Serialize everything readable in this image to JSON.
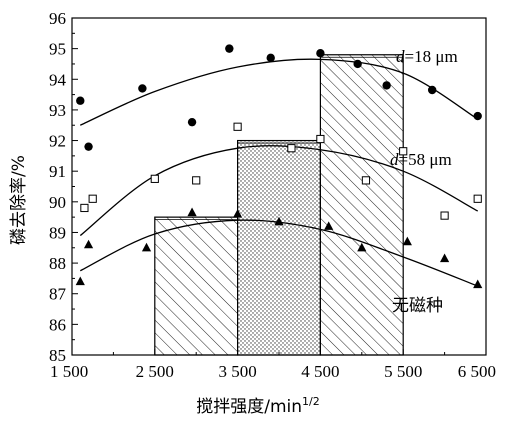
{
  "chart_data": {
    "type": "scatter",
    "xlabel": "搅拌强度/min",
    "xlabel_sup": "1/2",
    "ylabel": "磷去除率/%",
    "xlim": [
      1500,
      6500
    ],
    "ylim": [
      85,
      96
    ],
    "x_ticks": [
      1500,
      2500,
      3500,
      4500,
      5500,
      6500
    ],
    "x_tick_labels": [
      "1 500",
      "2 500",
      "3 500",
      "4 500",
      "5 500",
      "6 500"
    ],
    "y_ticks": [
      85,
      86,
      87,
      88,
      89,
      90,
      91,
      92,
      93,
      94,
      95,
      96
    ],
    "y_tick_labels": [
      "85",
      "86",
      "87",
      "88",
      "89",
      "90",
      "91",
      "92",
      "93",
      "94",
      "95",
      "96"
    ],
    "grid": false,
    "bars": [
      {
        "x_start": 2500,
        "x_end": 3500,
        "value": 89.5,
        "pattern": "diagonal-hatch"
      },
      {
        "x_start": 3500,
        "x_end": 4500,
        "value": 92.0,
        "pattern": "dots"
      },
      {
        "x_start": 4500,
        "x_end": 5500,
        "value": 94.8,
        "pattern": "diagonal-hatch-dense"
      }
    ],
    "series": [
      {
        "label_italic": "d",
        "label_rest": "=18 μm",
        "marker": "filled-circle",
        "x": [
          1600,
          1700,
          2350,
          2950,
          3400,
          3900,
          4500,
          4950,
          5300,
          5850,
          6400
        ],
        "y": [
          93.3,
          91.8,
          93.7,
          92.6,
          95.0,
          94.7,
          94.85,
          94.5,
          93.8,
          93.65,
          92.8
        ],
        "fit": {
          "x": [
            1600,
            2500,
            3500,
            4500,
            5500,
            6400
          ],
          "y": [
            92.5,
            93.6,
            94.4,
            94.65,
            94.2,
            92.7
          ]
        }
      },
      {
        "label_italic": "d",
        "label_rest": "=58 μm",
        "marker": "open-square",
        "x": [
          1650,
          1750,
          2500,
          3000,
          3500,
          4150,
          4500,
          5050,
          5500,
          6000,
          6400
        ],
        "y": [
          89.8,
          90.1,
          90.75,
          90.7,
          92.45,
          91.75,
          92.05,
          90.7,
          91.65,
          89.55,
          90.1
        ],
        "fit": {
          "x": [
            1600,
            2500,
            3500,
            4500,
            5500,
            6400
          ],
          "y": [
            88.9,
            90.85,
            91.75,
            91.7,
            91.0,
            89.7
          ]
        }
      },
      {
        "label": "无磁种",
        "marker": "filled-triangle",
        "x": [
          1600,
          1700,
          2400,
          2950,
          3500,
          4000,
          4600,
          5000,
          5550,
          6000,
          6400
        ],
        "y": [
          87.4,
          88.6,
          88.5,
          89.65,
          89.6,
          89.35,
          89.2,
          88.5,
          88.7,
          88.15,
          87.3
        ],
        "fit": {
          "x": [
            1600,
            2500,
            3500,
            4500,
            5500,
            6400
          ],
          "y": [
            87.75,
            88.95,
            89.4,
            89.1,
            88.2,
            87.25
          ]
        }
      }
    ]
  }
}
